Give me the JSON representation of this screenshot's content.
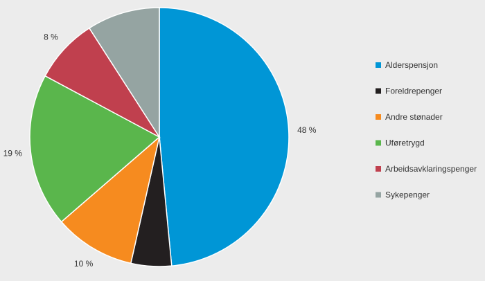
{
  "chart_data": {
    "type": "pie",
    "title": "",
    "legend_position": "right",
    "slices": [
      {
        "label": "Alderspensjon",
        "value": 48,
        "value_label": "48 %",
        "color": "#0096d6"
      },
      {
        "label": "Foreldrepenger",
        "value": 5,
        "value_label": "5 %",
        "color": "#231f20"
      },
      {
        "label": "Andre stønader",
        "value": 10,
        "value_label": "10 %",
        "color": "#f68b1f"
      },
      {
        "label": "Uføretrygd",
        "value": 19,
        "value_label": "19 %",
        "color": "#5ab64c"
      },
      {
        "label": "Arbeidsavklaringspenger",
        "value": 8,
        "value_label": "8 %",
        "color": "#c0404e"
      },
      {
        "label": "Sykepenger",
        "value": 9,
        "value_label": "9 %",
        "color": "#95a4a2"
      }
    ]
  }
}
